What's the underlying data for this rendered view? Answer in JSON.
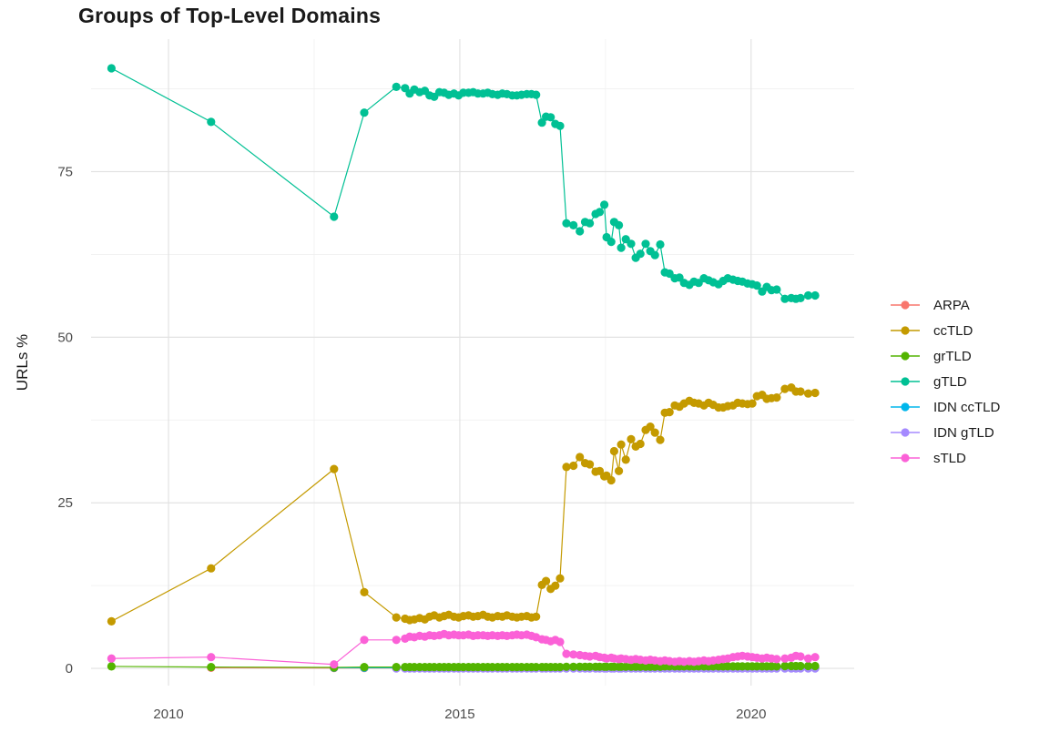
{
  "chart_data": {
    "type": "scatter",
    "title": "Groups of Top-Level Domains",
    "xlabel": "",
    "ylabel": "URLs %",
    "x_ticks": [
      2010,
      2015,
      2020
    ],
    "x_minor": [
      2012.5,
      2017.5
    ],
    "y_ticks": [
      0,
      25,
      50,
      75
    ],
    "y_minor": [
      12.5,
      37.5,
      62.5,
      87.5
    ],
    "x_range": [
      2008.67,
      2021.77
    ],
    "y_range": [
      -2.6,
      95.0
    ],
    "grid": true,
    "legend_position": "right",
    "draw_order": [
      "ARPA",
      "IDN ccTLD",
      "IDN gTLD",
      "grTLD",
      "ccTLD",
      "gTLD",
      "sTLD"
    ],
    "dense_x": [
      2013.91,
      2014.06,
      2014.14,
      2014.22,
      2014.31,
      2014.4,
      2014.48,
      2014.56,
      2014.65,
      2014.73,
      2014.81,
      2014.9,
      2014.98,
      2015.06,
      2015.15,
      2015.23,
      2015.31,
      2015.4,
      2015.48,
      2015.56,
      2015.65,
      2015.73,
      2015.81,
      2015.9,
      2015.98,
      2016.06,
      2016.15,
      2016.23,
      2016.31,
      2016.41,
      2016.48,
      2016.56,
      2016.64,
      2016.72,
      2016.83,
      2016.95,
      2017.06,
      2017.15,
      2017.23,
      2017.33,
      2017.4,
      2017.48,
      2017.52,
      2017.6,
      2017.65,
      2017.73,
      2017.77,
      2017.85,
      2017.94,
      2018.02,
      2018.1,
      2018.19,
      2018.27,
      2018.35,
      2018.44,
      2018.52,
      2018.6,
      2018.69,
      2018.77,
      2018.85,
      2018.94,
      2019.02,
      2019.1,
      2019.19,
      2019.27,
      2019.35,
      2019.44,
      2019.52,
      2019.6,
      2019.69,
      2019.77,
      2019.85,
      2019.94,
      2020.02,
      2020.1,
      2020.19,
      2020.27,
      2020.35,
      2020.44,
      2020.58,
      2020.69,
      2020.77,
      2020.85,
      2020.98,
      2021.1
    ],
    "series": [
      {
        "name": "ARPA",
        "color": "#F8766D",
        "early_points": [
          [
            2010.73,
            0.1
          ],
          [
            2012.84,
            0.05
          ],
          [
            2013.36,
            0.05
          ]
        ],
        "dense_values": [
          0.05,
          0.05,
          0.05,
          0.05,
          0.05,
          0.05,
          0.05,
          0.05,
          0.05,
          0.05,
          0.05,
          0.05,
          0.05,
          0.05,
          0.05,
          0.05,
          0.05,
          0.05,
          0.05,
          0.05,
          0.05,
          0.05,
          0.05,
          0.05,
          0.05,
          0.05,
          0.05,
          0.05,
          0.05,
          0.05,
          0.05,
          0.05,
          0.05,
          0.05,
          0.05,
          0.05,
          0.05,
          0.05,
          0.05,
          0.05,
          0.05,
          0.05,
          0.05,
          0.05,
          0.05,
          0.05,
          0.05,
          0.05,
          0.05,
          0.05,
          0.05,
          0.05,
          0.05,
          0.05,
          0.05,
          0.05,
          0.05,
          0.05,
          0.05,
          0.05,
          0.05,
          0.05,
          0.05,
          0.05,
          0.05,
          0.05,
          0.05,
          0.05,
          0.05,
          0.05,
          0.05,
          0.05,
          0.05,
          0.05,
          0.05,
          0.05,
          0.05,
          0.05,
          0.05,
          0.05,
          0.05,
          0.05,
          0.05,
          0.05,
          0.05
        ]
      },
      {
        "name": "ccTLD",
        "color": "#C49A00",
        "early_points": [
          [
            2009.02,
            7.1
          ],
          [
            2010.73,
            15.1
          ],
          [
            2012.84,
            30.1
          ],
          [
            2013.36,
            11.5
          ]
        ],
        "dense_values": [
          7.7,
          7.5,
          7.3,
          7.4,
          7.6,
          7.4,
          7.8,
          8.0,
          7.7,
          7.9,
          8.1,
          7.8,
          7.7,
          7.9,
          8.0,
          7.8,
          7.9,
          8.1,
          7.8,
          7.7,
          7.9,
          7.8,
          8.0,
          7.8,
          7.7,
          7.8,
          7.9,
          7.7,
          7.8,
          12.6,
          13.2,
          12.0,
          12.5,
          13.6,
          30.4,
          30.6,
          31.9,
          31.0,
          30.8,
          29.7,
          29.8,
          29.0,
          29.1,
          28.4,
          32.8,
          29.8,
          33.8,
          31.5,
          34.6,
          33.5,
          33.9,
          36.0,
          36.5,
          35.6,
          34.5,
          38.6,
          38.7,
          39.7,
          39.5,
          40.0,
          40.4,
          40.1,
          40.0,
          39.7,
          40.1,
          39.8,
          39.4,
          39.4,
          39.6,
          39.7,
          40.1,
          40.0,
          39.9,
          40.0,
          41.1,
          41.3,
          40.7,
          40.8,
          40.9,
          42.2,
          42.4,
          41.8,
          41.8,
          41.5,
          41.6
        ]
      },
      {
        "name": "grTLD",
        "color": "#53B400",
        "early_points": [
          [
            2009.02,
            0.3
          ],
          [
            2010.73,
            0.2
          ],
          [
            2012.84,
            0.15
          ],
          [
            2013.36,
            0.2
          ]
        ],
        "dense_values": [
          0.2,
          0.2,
          0.2,
          0.2,
          0.2,
          0.2,
          0.2,
          0.2,
          0.2,
          0.2,
          0.2,
          0.2,
          0.2,
          0.2,
          0.2,
          0.2,
          0.2,
          0.2,
          0.2,
          0.2,
          0.2,
          0.2,
          0.2,
          0.2,
          0.2,
          0.2,
          0.2,
          0.2,
          0.2,
          0.2,
          0.2,
          0.2,
          0.2,
          0.2,
          0.25,
          0.25,
          0.25,
          0.25,
          0.25,
          0.25,
          0.25,
          0.25,
          0.25,
          0.25,
          0.25,
          0.25,
          0.25,
          0.25,
          0.25,
          0.25,
          0.25,
          0.25,
          0.25,
          0.25,
          0.25,
          0.3,
          0.3,
          0.3,
          0.3,
          0.3,
          0.3,
          0.3,
          0.3,
          0.3,
          0.3,
          0.3,
          0.3,
          0.3,
          0.3,
          0.3,
          0.3,
          0.3,
          0.3,
          0.3,
          0.3,
          0.3,
          0.3,
          0.3,
          0.3,
          0.35,
          0.35,
          0.35,
          0.35,
          0.35,
          0.35
        ]
      },
      {
        "name": "gTLD",
        "color": "#00C094",
        "early_points": [
          [
            2009.02,
            90.6
          ],
          [
            2010.73,
            82.5
          ],
          [
            2012.84,
            68.2
          ],
          [
            2013.36,
            83.9
          ]
        ],
        "dense_values": [
          87.8,
          87.6,
          86.8,
          87.4,
          87.0,
          87.2,
          86.5,
          86.3,
          87.0,
          86.9,
          86.6,
          86.8,
          86.5,
          86.9,
          86.9,
          87.0,
          86.8,
          86.8,
          86.9,
          86.7,
          86.6,
          86.8,
          86.7,
          86.5,
          86.5,
          86.6,
          86.7,
          86.7,
          86.6,
          82.4,
          83.3,
          83.2,
          82.2,
          81.9,
          67.2,
          66.9,
          66.0,
          67.4,
          67.2,
          68.6,
          68.9,
          70.0,
          65.1,
          64.4,
          67.4,
          66.9,
          63.5,
          64.8,
          64.1,
          62.0,
          62.6,
          64.1,
          63.0,
          62.4,
          64.0,
          59.8,
          59.6,
          58.9,
          59.0,
          58.2,
          57.9,
          58.4,
          58.2,
          58.9,
          58.6,
          58.3,
          58.0,
          58.5,
          58.9,
          58.7,
          58.5,
          58.4,
          58.1,
          58.0,
          57.8,
          56.9,
          57.6,
          57.1,
          57.2,
          55.8,
          55.9,
          55.8,
          55.9,
          56.3,
          56.3
        ]
      },
      {
        "name": "IDN ccTLD",
        "color": "#00B6EB",
        "early_points": [
          [
            2012.84,
            0.1
          ],
          [
            2013.36,
            0.1
          ]
        ],
        "dense_values": [
          0.1,
          0.1,
          0.1,
          0.1,
          0.1,
          0.1,
          0.1,
          0.1,
          0.1,
          0.1,
          0.1,
          0.1,
          0.1,
          0.1,
          0.1,
          0.1,
          0.1,
          0.1,
          0.1,
          0.1,
          0.1,
          0.1,
          0.1,
          0.1,
          0.1,
          0.1,
          0.1,
          0.1,
          0.1,
          0.1,
          0.1,
          0.1,
          0.1,
          0.1,
          0.1,
          0.1,
          0.1,
          0.1,
          0.1,
          0.1,
          0.1,
          0.1,
          0.1,
          0.1,
          0.1,
          0.1,
          0.1,
          0.1,
          0.1,
          0.1,
          0.1,
          0.1,
          0.1,
          0.1,
          0.1,
          0.1,
          0.1,
          0.1,
          0.1,
          0.1,
          0.1,
          0.1,
          0.1,
          0.1,
          0.1,
          0.1,
          0.1,
          0.1,
          0.1,
          0.1,
          0.1,
          0.1,
          0.1,
          0.1,
          0.1,
          0.1,
          0.1,
          0.1,
          0.1,
          0.1,
          0.1,
          0.1,
          0.1,
          0.1,
          0.1
        ]
      },
      {
        "name": "IDN gTLD",
        "color": "#A58AFF",
        "early_points": [],
        "dense_values": [
          0,
          0,
          0,
          0,
          0,
          0,
          0,
          0,
          0,
          0,
          0,
          0,
          0,
          0,
          0,
          0,
          0,
          0,
          0,
          0,
          0,
          0,
          0,
          0,
          0,
          0,
          0,
          0,
          0,
          0,
          0,
          0,
          0,
          0,
          0,
          0,
          0,
          0,
          0,
          0,
          0,
          0,
          0,
          0,
          0,
          0,
          0,
          0,
          0,
          0,
          0,
          0,
          0,
          0,
          0,
          0,
          0,
          0,
          0,
          0,
          0,
          0,
          0,
          0,
          0,
          0,
          0,
          0,
          0,
          0,
          0,
          0,
          0,
          0,
          0,
          0,
          0,
          0,
          0,
          0,
          0,
          0,
          0,
          0,
          0
        ]
      },
      {
        "name": "sTLD",
        "color": "#FB61D7",
        "early_points": [
          [
            2009.02,
            1.5
          ],
          [
            2010.73,
            1.7
          ],
          [
            2012.84,
            0.6
          ],
          [
            2013.36,
            4.3
          ]
        ],
        "dense_values": [
          4.3,
          4.5,
          4.8,
          4.7,
          4.9,
          4.8,
          5.0,
          4.9,
          5.0,
          5.2,
          5.0,
          5.1,
          5.0,
          5.0,
          5.1,
          4.9,
          5.0,
          5.0,
          4.9,
          5.0,
          4.9,
          5.0,
          4.9,
          5.0,
          5.1,
          5.0,
          5.1,
          4.9,
          4.7,
          4.4,
          4.3,
          4.1,
          4.3,
          4.0,
          2.2,
          2.1,
          2.0,
          1.9,
          1.8,
          1.9,
          1.7,
          1.6,
          1.5,
          1.6,
          1.5,
          1.4,
          1.5,
          1.4,
          1.3,
          1.4,
          1.3,
          1.2,
          1.3,
          1.2,
          1.1,
          1.2,
          1.1,
          1.0,
          1.1,
          1.0,
          1.1,
          1.0,
          1.1,
          1.2,
          1.1,
          1.2,
          1.3,
          1.4,
          1.5,
          1.7,
          1.8,
          1.9,
          1.8,
          1.7,
          1.6,
          1.5,
          1.6,
          1.5,
          1.4,
          1.5,
          1.6,
          1.9,
          1.8,
          1.5,
          1.7
        ]
      }
    ]
  }
}
